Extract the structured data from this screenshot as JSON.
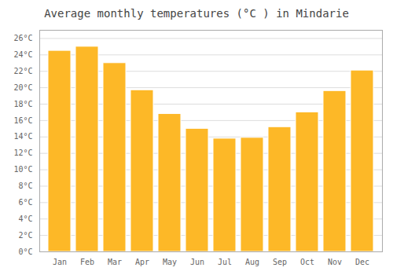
{
  "chart_data": {
    "type": "bar",
    "title": "Average monthly temperatures (°C ) in Mindarie",
    "categories": [
      "Jan",
      "Feb",
      "Mar",
      "Apr",
      "May",
      "Jun",
      "Jul",
      "Aug",
      "Sep",
      "Oct",
      "Nov",
      "Dec"
    ],
    "values": [
      24.5,
      25.0,
      23.0,
      19.7,
      16.8,
      15.0,
      13.8,
      13.9,
      15.2,
      17.0,
      19.6,
      22.1
    ],
    "color": "#FDB827",
    "ylim": [
      0,
      27
    ],
    "yticks": [
      {
        "value": 0,
        "label": "0°C"
      },
      {
        "value": 2,
        "label": "2°C"
      },
      {
        "value": 4,
        "label": "4°C"
      },
      {
        "value": 6,
        "label": "6°C"
      },
      {
        "value": 8,
        "label": "8°C"
      },
      {
        "value": 10,
        "label": "10°C"
      },
      {
        "value": 12,
        "label": "12°C"
      },
      {
        "value": 14,
        "label": "14°C"
      },
      {
        "value": 16,
        "label": "16°C"
      },
      {
        "value": 18,
        "label": "18°C"
      },
      {
        "value": 20,
        "label": "20°C"
      },
      {
        "value": 22,
        "label": "22°C"
      },
      {
        "value": 24,
        "label": "24°C"
      },
      {
        "value": 26,
        "label": "26°C"
      }
    ],
    "grid": true
  }
}
